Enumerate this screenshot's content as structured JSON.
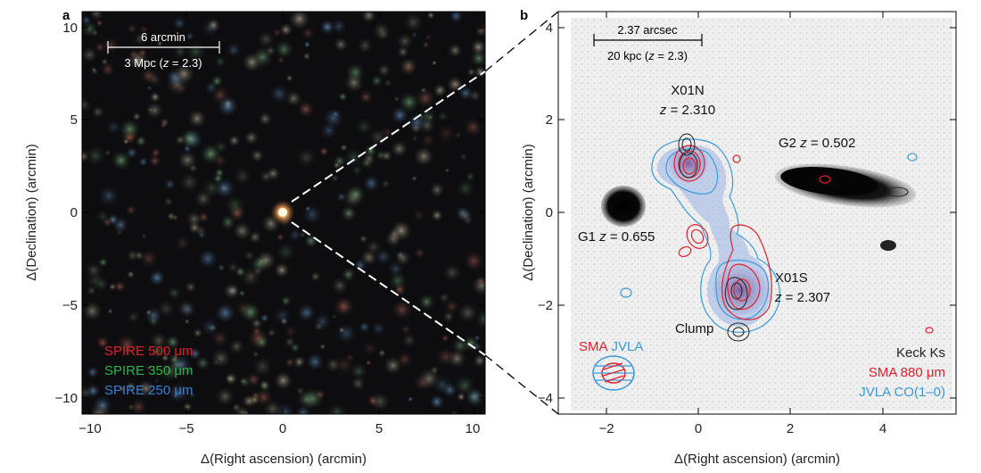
{
  "panel_a": {
    "label": "a",
    "xlabel": "Δ(Right ascension) (arcmin)",
    "ylabel": "Δ(Declination) (arcmin)",
    "xticks": [
      "−10",
      "−5",
      "0",
      "5",
      "10"
    ],
    "yticks": [
      "10",
      "5",
      "0",
      "−5",
      "−10"
    ],
    "scalebar": {
      "top_label": "6 arcmin",
      "bottom_label_prefix": "3 Mpc (",
      "bottom_label_z": "z",
      "bottom_label_suffix": " = 2.3)"
    },
    "legend": [
      {
        "text": "SPIRE 500 μm",
        "color": "#e0202c"
      },
      {
        "text": "SPIRE 350 μm",
        "color": "#2db34a"
      },
      {
        "text": "SPIRE 250 μm",
        "color": "#3a7fd0"
      }
    ]
  },
  "panel_b": {
    "label": "b",
    "xlabel": "Δ(Right ascension) (arcmin)",
    "ylabel": "Δ(Declination) (arcmin)",
    "xticks": [
      "−2",
      "0",
      "2",
      "4"
    ],
    "yticks": [
      "4",
      "2",
      "0",
      "−2",
      "−4"
    ],
    "scalebar": {
      "top_label": "2.37 arcsec",
      "bottom_label_prefix": "20 kpc (",
      "bottom_label_z": "z",
      "bottom_label_suffix": " = 2.3)"
    },
    "annotations": {
      "x01n_name": "X01N",
      "x01n_z": "z",
      "x01n_z_value": " = 2.310",
      "x01s_name": "X01S",
      "x01s_z": "z",
      "x01s_z_value": " = 2.307",
      "g1_name": "G1 ",
      "g1_z": "z",
      "g1_z_value": " = 0.655",
      "g2_name": "G2 ",
      "g2_z": "z",
      "g2_z_value": " = 0.502",
      "clump": "Clump"
    },
    "beam_label": {
      "sma": "SMA",
      "jvla": "JVLA"
    },
    "legend": [
      {
        "text": "Keck Ks",
        "color": "#222222"
      },
      {
        "text": "SMA 880 μm",
        "color": "#e0202c"
      },
      {
        "text": "JVLA CO(1–0)",
        "color": "#3a9ad8"
      }
    ]
  },
  "colors": {
    "sma_red": "#e0202c",
    "jvla_blue": "#3a9ad8",
    "keck_black": "#222222"
  }
}
